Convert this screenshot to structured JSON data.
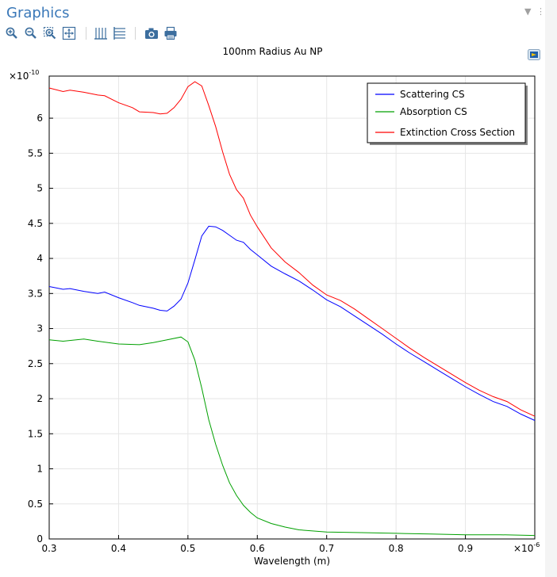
{
  "panel": {
    "title": "Graphics"
  },
  "toolbar": {
    "buttons": [
      {
        "name": "zoom-in",
        "icon": "zoom-in-icon"
      },
      {
        "name": "zoom-out",
        "icon": "zoom-out-icon"
      },
      {
        "name": "zoom-box",
        "icon": "zoom-box-icon"
      },
      {
        "name": "zoom-extents",
        "icon": "zoom-extents-icon"
      },
      {
        "name": "x-grid",
        "icon": "vertical-grid-icon"
      },
      {
        "name": "y-grid",
        "icon": "horizontal-grid-icon"
      },
      {
        "name": "image-snapshot",
        "icon": "camera-icon"
      },
      {
        "name": "print",
        "icon": "printer-icon"
      }
    ]
  },
  "colors": {
    "title": "#3a78b8",
    "grid": "#e6e6e6",
    "scattering": "#0000ff",
    "absorption": "#00a000",
    "extinction": "#ff0000"
  },
  "chart_data": {
    "type": "line",
    "title": "100nm Radius Au NP",
    "xlabel": "Wavelength (m)",
    "ylabel": "",
    "x_exponent_label": "×10",
    "x_exponent_power": "-6",
    "y_exponent_label": "×10",
    "y_exponent_power": "-10",
    "xlim": [
      0.3,
      1.0
    ],
    "ylim": [
      0,
      6.6
    ],
    "xticks": [
      0.3,
      0.4,
      0.5,
      0.6,
      0.7,
      0.8,
      0.9
    ],
    "xtick_labels": [
      "0.3",
      "0.4",
      "0.5",
      "0.6",
      "0.7",
      "0.8",
      "0.9"
    ],
    "yticks": [
      0,
      0.5,
      1,
      1.5,
      2,
      2.5,
      3,
      3.5,
      4,
      4.5,
      5,
      5.5,
      6
    ],
    "ytick_labels": [
      "0",
      "0.5",
      "1",
      "1.5",
      "2",
      "2.5",
      "3",
      "3.5",
      "4",
      "4.5",
      "5",
      "5.5",
      "6"
    ],
    "grid": true,
    "legend_position": "top-right",
    "series": [
      {
        "name": "Scattering CS",
        "color": "#0000ff",
        "x": [
          0.3,
          0.32,
          0.33,
          0.35,
          0.37,
          0.38,
          0.4,
          0.42,
          0.43,
          0.45,
          0.46,
          0.47,
          0.48,
          0.49,
          0.5,
          0.51,
          0.52,
          0.53,
          0.54,
          0.55,
          0.56,
          0.57,
          0.58,
          0.59,
          0.6,
          0.62,
          0.64,
          0.66,
          0.68,
          0.7,
          0.72,
          0.74,
          0.76,
          0.78,
          0.8,
          0.82,
          0.84,
          0.86,
          0.88,
          0.9,
          0.92,
          0.94,
          0.96,
          0.98,
          1.0
        ],
        "values": [
          3.6,
          3.56,
          3.57,
          3.53,
          3.5,
          3.52,
          3.44,
          3.37,
          3.33,
          3.29,
          3.26,
          3.25,
          3.32,
          3.42,
          3.65,
          3.98,
          4.32,
          4.46,
          4.45,
          4.4,
          4.33,
          4.26,
          4.23,
          4.13,
          4.05,
          3.89,
          3.78,
          3.68,
          3.55,
          3.41,
          3.31,
          3.18,
          3.05,
          2.92,
          2.78,
          2.65,
          2.53,
          2.41,
          2.29,
          2.17,
          2.06,
          1.96,
          1.89,
          1.78,
          1.69
        ]
      },
      {
        "name": "Absorption CS",
        "color": "#00a000",
        "x": [
          0.3,
          0.32,
          0.35,
          0.37,
          0.4,
          0.43,
          0.45,
          0.47,
          0.49,
          0.5,
          0.51,
          0.52,
          0.53,
          0.54,
          0.55,
          0.56,
          0.57,
          0.58,
          0.59,
          0.6,
          0.62,
          0.64,
          0.66,
          0.7,
          0.75,
          0.8,
          0.85,
          0.9,
          0.95,
          1.0
        ],
        "values": [
          2.84,
          2.82,
          2.85,
          2.82,
          2.78,
          2.77,
          2.8,
          2.84,
          2.88,
          2.81,
          2.55,
          2.15,
          1.7,
          1.35,
          1.05,
          0.8,
          0.62,
          0.48,
          0.38,
          0.3,
          0.22,
          0.17,
          0.13,
          0.1,
          0.09,
          0.08,
          0.07,
          0.06,
          0.06,
          0.05
        ]
      },
      {
        "name": "Extinction Cross Section",
        "color": "#ff0000",
        "x": [
          0.3,
          0.32,
          0.33,
          0.35,
          0.37,
          0.38,
          0.4,
          0.42,
          0.43,
          0.45,
          0.46,
          0.47,
          0.48,
          0.49,
          0.5,
          0.51,
          0.52,
          0.53,
          0.54,
          0.55,
          0.56,
          0.57,
          0.58,
          0.59,
          0.6,
          0.62,
          0.64,
          0.66,
          0.68,
          0.7,
          0.72,
          0.74,
          0.76,
          0.78,
          0.8,
          0.82,
          0.84,
          0.86,
          0.88,
          0.9,
          0.92,
          0.94,
          0.96,
          0.98,
          1.0
        ],
        "values": [
          6.43,
          6.38,
          6.4,
          6.37,
          6.33,
          6.32,
          6.22,
          6.15,
          6.09,
          6.08,
          6.06,
          6.07,
          6.15,
          6.27,
          6.45,
          6.52,
          6.46,
          6.18,
          5.88,
          5.52,
          5.2,
          4.98,
          4.86,
          4.62,
          4.45,
          4.15,
          3.95,
          3.8,
          3.62,
          3.48,
          3.4,
          3.28,
          3.14,
          3.0,
          2.86,
          2.72,
          2.59,
          2.47,
          2.35,
          2.23,
          2.12,
          2.03,
          1.96,
          1.84,
          1.75
        ]
      }
    ]
  }
}
